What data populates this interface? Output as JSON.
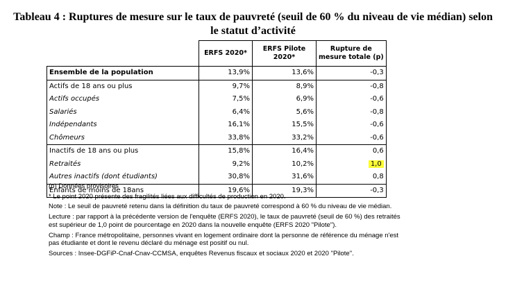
{
  "title_line1": "Tableau 4 : Ruptures de mesure sur le taux de pauvreté (seuil de 60 % du niveau de vie médian) selon",
  "title_line2": "le statut d’activité",
  "headers": {
    "col1": "ERFS 2020*",
    "col2_line1": "ERFS Pilote",
    "col2_line2": "2020*",
    "col3_line1": "Rupture de",
    "col3_line2": "mesure totale (p)"
  },
  "rows": [
    {
      "label": "Ensemble de la population",
      "erfs2020": "13,9%",
      "pilote": "13,6%",
      "rupture": "-0,3"
    },
    {
      "label": "Actifs de 18 ans ou plus",
      "erfs2020": "9,7%",
      "pilote": "8,9%",
      "rupture": "-0,8"
    },
    {
      "label": "Actifs occupés",
      "erfs2020": "7,5%",
      "pilote": "6,9%",
      "rupture": "-0,6"
    },
    {
      "label": "Salariés",
      "erfs2020": "6,4%",
      "pilote": "5,6%",
      "rupture": "-0,8"
    },
    {
      "label": "Indépendants",
      "erfs2020": "16,1%",
      "pilote": "15,5%",
      "rupture": "-0,6"
    },
    {
      "label": "Chômeurs",
      "erfs2020": "33,8%",
      "pilote": "33,2%",
      "rupture": "-0,6"
    },
    {
      "label": "Inactifs de 18 ans ou plus",
      "erfs2020": "15,8%",
      "pilote": "16,4%",
      "rupture": "0,6"
    },
    {
      "label": "Retraités",
      "erfs2020": "9,2%",
      "pilote": "10,2%",
      "rupture": "1,0"
    },
    {
      "label": "Autres inactifs (dont étudiants)",
      "erfs2020": "30,8%",
      "pilote": "31,6%",
      "rupture": "0,8"
    },
    {
      "label": "Enfants de moins de 18ans",
      "erfs2020": "19,6%",
      "pilote": "19,3%",
      "rupture": "-0,3"
    }
  ],
  "highlight_color": "#fbfb3a",
  "notes": {
    "provisional": "(p) Données provisoires",
    "asterisk": "* Le point 2020 présente des fragilités liées aux difficultés de production en 2020.",
    "note": "Note : Le seuil de pauvreté retenu dans la définition du taux de pauvreté correspond à 60 % du niveau de vie médian.",
    "lecture_line1": "Lecture : par rapport à la précédente version de l'enquête (ERFS 2020), le taux de pauvreté (seuil de 60 %) des retraités",
    "lecture_line2": "est supérieur de 1,0 point de pourcentage en 2020 dans la nouvelle enquête (ERFS 2020 \"Pilote\").",
    "champ_line1": "Champ : France métropolitaine, personnes vivant en logement ordinaire dont la personne de référence du ménage n'est",
    "champ_line2": "pas étudiante et dont le revenu déclaré du ménage est positif ou nul.",
    "sources": "Sources : Insee-DGFiP-Cnaf-Cnav-CCMSA, enquêtes Revenus fiscaux et sociaux 2020 et 2020 \"Pilote\"."
  }
}
